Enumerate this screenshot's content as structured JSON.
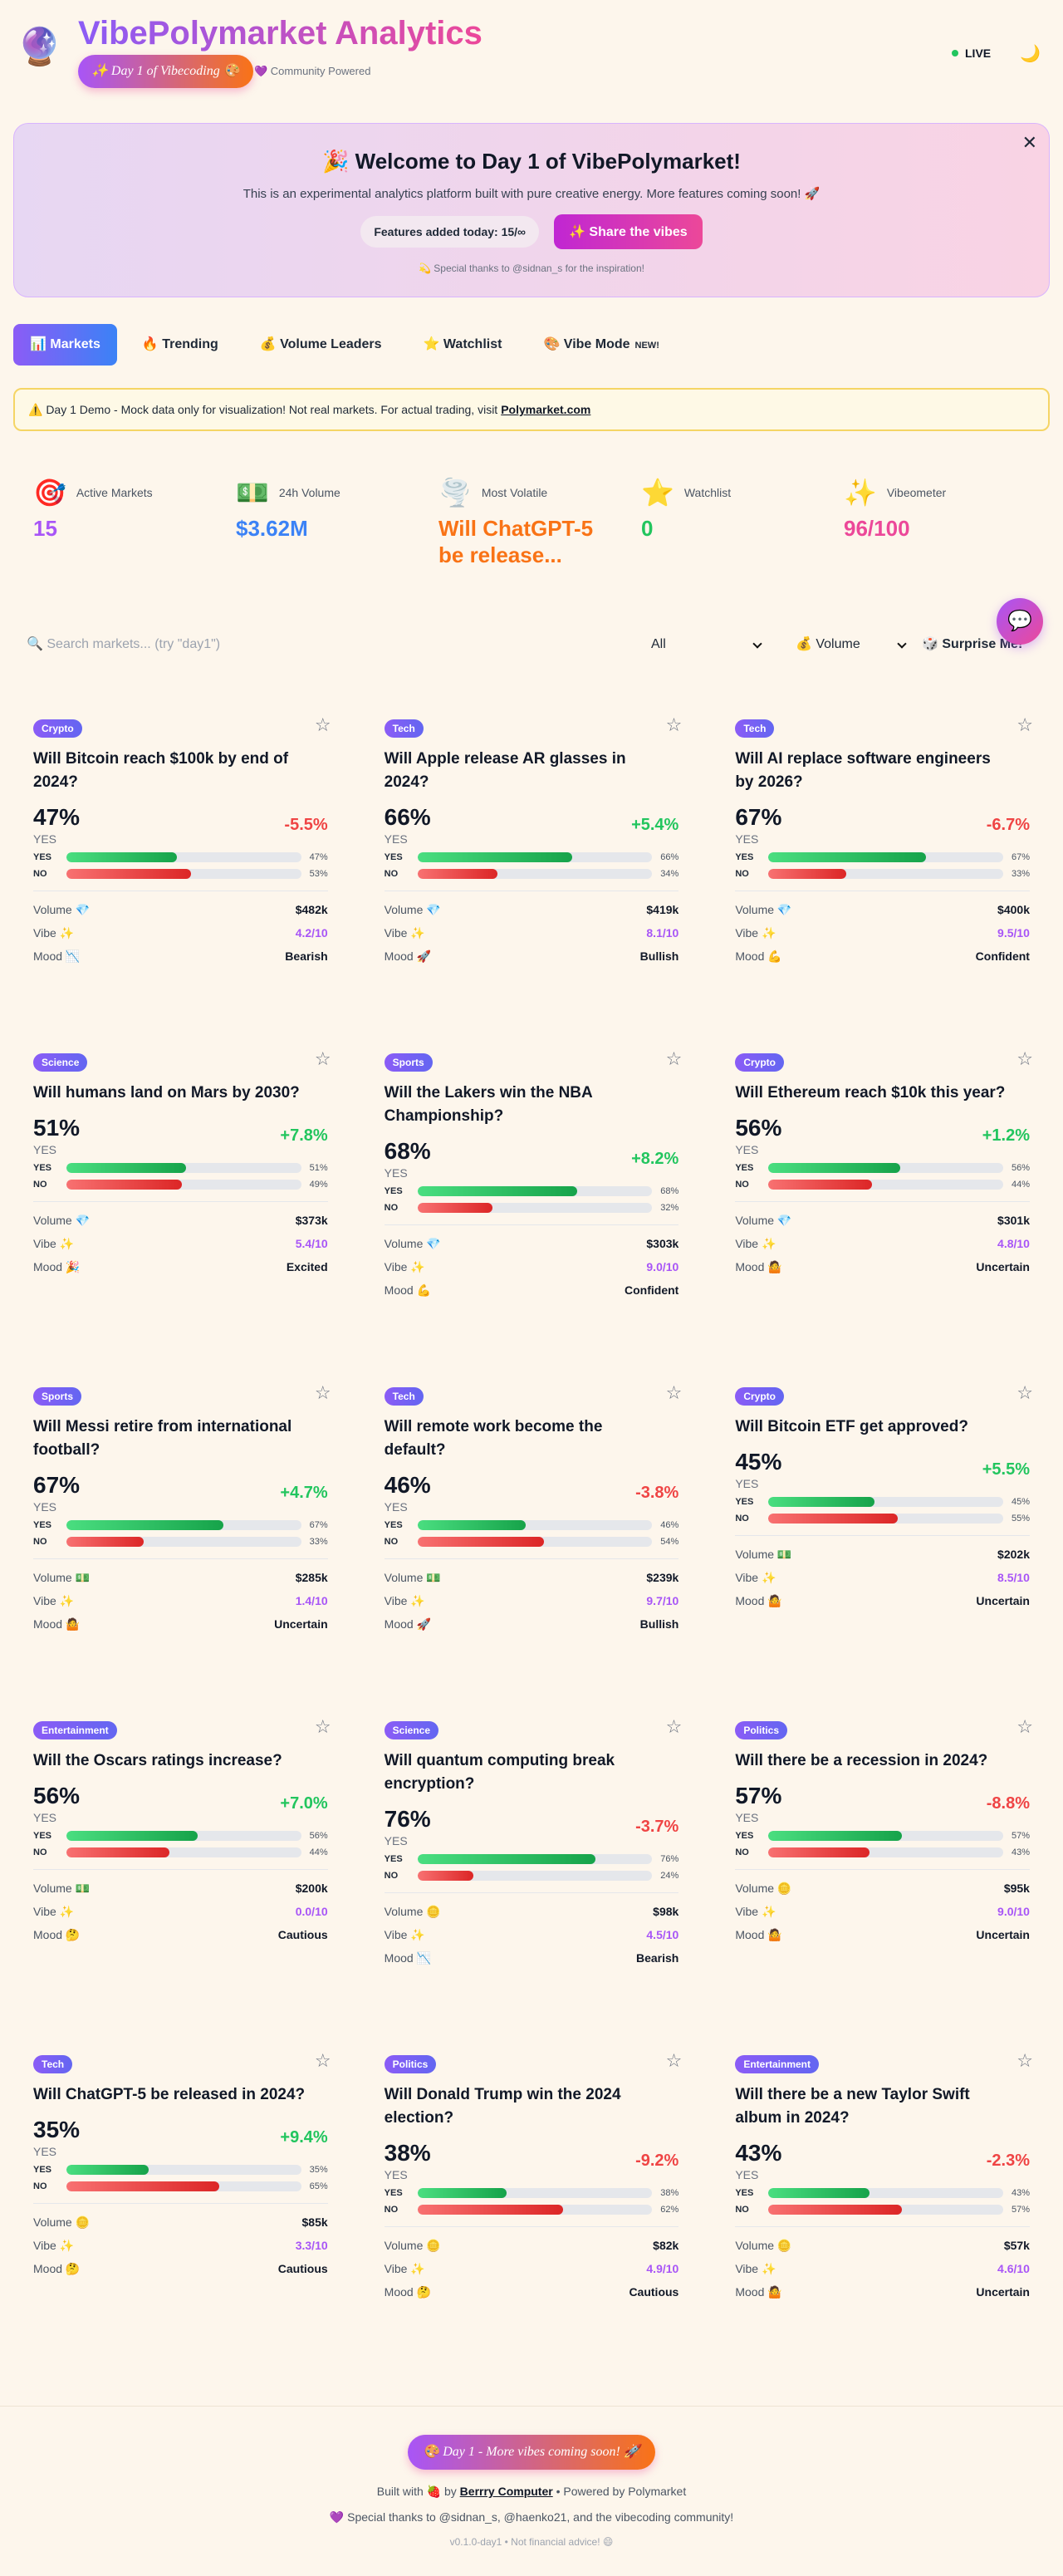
{
  "header": {
    "logo": "🔮",
    "title": "VibePolymarket Analytics",
    "badge": "✨ Day 1 of Vibecoding 🎨",
    "community": "💜 Community Powered",
    "live": "LIVE",
    "theme": "🌙"
  },
  "banner": {
    "close": "✕",
    "title": "🎉 Welcome to Day 1 of VibePolymarket!",
    "text": "This is an experimental analytics platform built with pure creative energy. More features coming soon! 🚀",
    "features": "Features added today: 15/∞",
    "share": "✨ Share the vibes",
    "thanks": "💫 Special thanks to @sidnan_s for the inspiration!"
  },
  "tabs": [
    "📊 Markets",
    "🔥 Trending",
    "💰 Volume Leaders",
    "⭐ Watchlist",
    "🎨 Vibe Mode"
  ],
  "tab_badge": "NEW!",
  "notice": {
    "text": "⚠️ Day 1 Demo - Mock data only for visualization! Not real markets. For actual trading, visit",
    "link": "Polymarket.com"
  },
  "stats": [
    {
      "icon": "🎯",
      "label": "Active Markets",
      "value": "15"
    },
    {
      "icon": "💵",
      "label": "24h Volume",
      "value": "$3.62M"
    },
    {
      "icon": "🌪️",
      "label": "Most Volatile",
      "value": "Will ChatGPT-5 be release..."
    },
    {
      "icon": "⭐",
      "label": "Watchlist",
      "value": "0"
    },
    {
      "icon": "✨",
      "label": "Vibeometer",
      "value": "96/100"
    }
  ],
  "controls": {
    "search": "🔍 Search markets... (try \"day1\")",
    "filter": "All",
    "sort": "💰 Volume",
    "surprise": "🎲 Surprise Me!"
  },
  "chat": "💬",
  "labels": {
    "yes": "YES",
    "no": "NO",
    "star": "☆"
  },
  "markets": [
    {
      "category": "Crypto",
      "title": "Will Bitcoin reach $100k by end of 2024?",
      "yes": {
        "value": 47,
        "label": "47%"
      },
      "no": {
        "value": 53,
        "label": "53%"
      },
      "change": "-5.5%",
      "volume_label": "Volume 💎",
      "volume": "$482k",
      "vibe_label": "Vibe ✨",
      "vibe": "4.2/10",
      "mood_label": "Mood 📉",
      "mood": "Bearish"
    },
    {
      "category": "Tech",
      "title": "Will Apple release AR glasses in 2024?",
      "yes": {
        "value": 66,
        "label": "66%"
      },
      "no": {
        "value": 34,
        "label": "34%"
      },
      "change": "+5.4%",
      "volume_label": "Volume 💎",
      "volume": "$419k",
      "vibe_label": "Vibe ✨",
      "vibe": "8.1/10",
      "mood_label": "Mood 🚀",
      "mood": "Bullish"
    },
    {
      "category": "Tech",
      "title": "Will AI replace software engineers by 2026?",
      "yes": {
        "value": 67,
        "label": "67%"
      },
      "no": {
        "value": 33,
        "label": "33%"
      },
      "change": "-6.7%",
      "volume_label": "Volume 💎",
      "volume": "$400k",
      "vibe_label": "Vibe ✨",
      "vibe": "9.5/10",
      "mood_label": "Mood 💪",
      "mood": "Confident"
    },
    {
      "category": "Science",
      "title": "Will humans land on Mars by 2030?",
      "yes": {
        "value": 51,
        "label": "51%"
      },
      "no": {
        "value": 49,
        "label": "49%"
      },
      "change": "+7.8%",
      "volume_label": "Volume 💎",
      "volume": "$373k",
      "vibe_label": "Vibe ✨",
      "vibe": "5.4/10",
      "mood_label": "Mood 🎉",
      "mood": "Excited"
    },
    {
      "category": "Sports",
      "title": "Will the Lakers win the NBA Championship?",
      "yes": {
        "value": 68,
        "label": "68%"
      },
      "no": {
        "value": 32,
        "label": "32%"
      },
      "change": "+8.2%",
      "volume_label": "Volume 💎",
      "volume": "$303k",
      "vibe_label": "Vibe ✨",
      "vibe": "9.0/10",
      "mood_label": "Mood 💪",
      "mood": "Confident"
    },
    {
      "category": "Crypto",
      "title": "Will Ethereum reach $10k this year?",
      "yes": {
        "value": 56,
        "label": "56%"
      },
      "no": {
        "value": 44,
        "label": "44%"
      },
      "change": "+1.2%",
      "volume_label": "Volume 💎",
      "volume": "$301k",
      "vibe_label": "Vibe ✨",
      "vibe": "4.8/10",
      "mood_label": "Mood 🤷",
      "mood": "Uncertain"
    },
    {
      "category": "Sports",
      "title": "Will Messi retire from international football?",
      "yes": {
        "value": 67,
        "label": "67%"
      },
      "no": {
        "value": 33,
        "label": "33%"
      },
      "change": "+4.7%",
      "volume_label": "Volume 💵",
      "volume": "$285k",
      "vibe_label": "Vibe ✨",
      "vibe": "1.4/10",
      "mood_label": "Mood 🤷",
      "mood": "Uncertain"
    },
    {
      "category": "Tech",
      "title": "Will remote work become the default?",
      "yes": {
        "value": 46,
        "label": "46%"
      },
      "no": {
        "value": 54,
        "label": "54%"
      },
      "change": "-3.8%",
      "volume_label": "Volume 💵",
      "volume": "$239k",
      "vibe_label": "Vibe ✨",
      "vibe": "9.7/10",
      "mood_label": "Mood 🚀",
      "mood": "Bullish"
    },
    {
      "category": "Crypto",
      "title": "Will Bitcoin ETF get approved?",
      "yes": {
        "value": 45,
        "label": "45%"
      },
      "no": {
        "value": 55,
        "label": "55%"
      },
      "change": "+5.5%",
      "volume_label": "Volume 💵",
      "volume": "$202k",
      "vibe_label": "Vibe ✨",
      "vibe": "8.5/10",
      "mood_label": "Mood 🤷",
      "mood": "Uncertain"
    },
    {
      "category": "Entertainment",
      "title": "Will the Oscars ratings increase?",
      "yes": {
        "value": 56,
        "label": "56%"
      },
      "no": {
        "value": 44,
        "label": "44%"
      },
      "change": "+7.0%",
      "volume_label": "Volume 💵",
      "volume": "$200k",
      "vibe_label": "Vibe ✨",
      "vibe": "0.0/10",
      "mood_label": "Mood 🤔",
      "mood": "Cautious"
    },
    {
      "category": "Science",
      "title": "Will quantum computing break encryption?",
      "yes": {
        "value": 76,
        "label": "76%"
      },
      "no": {
        "value": 24,
        "label": "24%"
      },
      "change": "-3.7%",
      "volume_label": "Volume 🪙",
      "volume": "$98k",
      "vibe_label": "Vibe ✨",
      "vibe": "4.5/10",
      "mood_label": "Mood 📉",
      "mood": "Bearish"
    },
    {
      "category": "Politics",
      "title": "Will there be a recession in 2024?",
      "yes": {
        "value": 57,
        "label": "57%"
      },
      "no": {
        "value": 43,
        "label": "43%"
      },
      "change": "-8.8%",
      "volume_label": "Volume 🪙",
      "volume": "$95k",
      "vibe_label": "Vibe ✨",
      "vibe": "9.0/10",
      "mood_label": "Mood 🤷",
      "mood": "Uncertain"
    },
    {
      "category": "Tech",
      "title": "Will ChatGPT-5 be released in 2024?",
      "yes": {
        "value": 35,
        "label": "35%"
      },
      "no": {
        "value": 65,
        "label": "65%"
      },
      "change": "+9.4%",
      "volume_label": "Volume 🪙",
      "volume": "$85k",
      "vibe_label": "Vibe ✨",
      "vibe": "3.3/10",
      "mood_label": "Mood 🤔",
      "mood": "Cautious"
    },
    {
      "category": "Politics",
      "title": "Will Donald Trump win the 2024 election?",
      "yes": {
        "value": 38,
        "label": "38%"
      },
      "no": {
        "value": 62,
        "label": "62%"
      },
      "change": "-9.2%",
      "volume_label": "Volume 🪙",
      "volume": "$82k",
      "vibe_label": "Vibe ✨",
      "vibe": "4.9/10",
      "mood_label": "Mood 🤔",
      "mood": "Cautious"
    },
    {
      "category": "Entertainment",
      "title": "Will there be a new Taylor Swift album in 2024?",
      "yes": {
        "value": 43,
        "label": "43%"
      },
      "no": {
        "value": 57,
        "label": "57%"
      },
      "change": "-2.3%",
      "volume_label": "Volume 🪙",
      "volume": "$57k",
      "vibe_label": "Vibe ✨",
      "vibe": "4.6/10",
      "mood_label": "Mood 🤷",
      "mood": "Uncertain"
    }
  ],
  "footer": {
    "badge": "🎨 Day 1 - More vibes coming soon! 🚀",
    "built": "Built with 🍓 by",
    "built_link": "Berrry Computer",
    "powered": "• Powered by Polymarket",
    "thanks": "💜 Special thanks to @sidnan_s, @haenko21, and the vibecoding community!",
    "version": "v0.1.0-day1 • Not financial advice! 😄"
  }
}
